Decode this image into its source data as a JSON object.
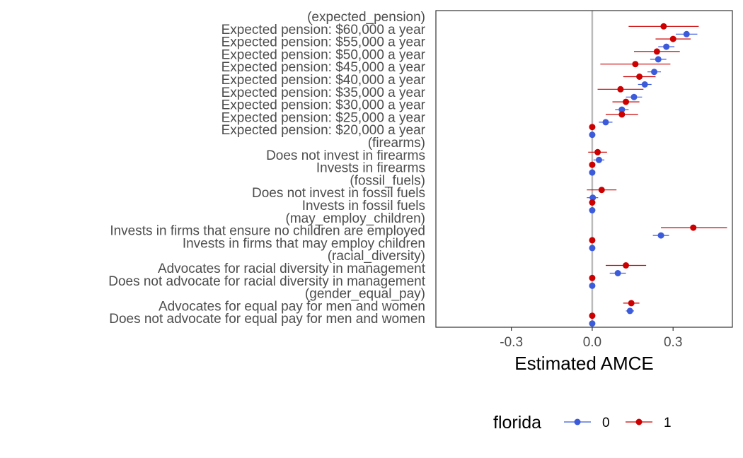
{
  "chart_data": {
    "type": "scatter",
    "subtype": "coefficient-plot-with-horizontal-error-bars",
    "title": "",
    "xlabel": "Estimated AMCE",
    "ylabel": "",
    "xlim": [
      -0.58,
      0.52
    ],
    "x_ticks": [
      -0.3,
      0.0,
      0.3
    ],
    "x_tick_labels": [
      "-0.3",
      "0.0",
      "0.3"
    ],
    "reference_line_x": 0,
    "grid": false,
    "legend": {
      "title": "florida",
      "position": "bottom",
      "labels": [
        "0",
        "1"
      ]
    },
    "colors": {
      "0": "#3B5BDB",
      "1": "#CC0000",
      "reference_line": "#BBBBBB",
      "panel_border": "#333333"
    },
    "categories": [
      "(expected_pension)",
      "Expected pension: $60,000 a year",
      "Expected pension: $55,000 a year",
      "Expected pension: $50,000 a year",
      "Expected pension: $45,000 a year",
      "Expected pension: $40,000 a year",
      "Expected pension: $35,000 a year",
      "Expected pension: $30,000 a year",
      "Expected pension: $25,000 a year",
      "Expected pension: $20,000 a year",
      "(firearms)",
      "Does not invest in firearms",
      "Invests in firearms",
      "(fossil_fuels)",
      "Does not invest in fossil fuels",
      "Invests in fossil fuels",
      "(may_employ_children)",
      "Invests in firms that ensure no children are employed",
      "Invests in firms that may employ children",
      "(racial_diversity)",
      "Advocates for racial diversity in management",
      "Does not advocate for racial diversity in management",
      "(gender_equal_pay)",
      "Advocates for equal pay for men and women",
      "Does not advocate for equal pay for men and women"
    ],
    "series": [
      {
        "name": "0",
        "estimates": [
          null,
          0.35,
          0.275,
          0.245,
          0.23,
          0.195,
          0.155,
          0.11,
          0.05,
          0.0,
          null,
          0.025,
          0.0,
          null,
          0.002,
          0.0,
          null,
          0.255,
          0.0,
          null,
          0.095,
          0.0,
          null,
          0.14,
          0.0
        ],
        "lower": [
          null,
          0.31,
          0.245,
          0.215,
          0.205,
          0.17,
          0.125,
          0.085,
          0.025,
          0.0,
          null,
          0.005,
          0.0,
          null,
          -0.02,
          0.0,
          null,
          0.225,
          0.0,
          null,
          0.065,
          0.0,
          null,
          0.125,
          0.0
        ],
        "upper": [
          null,
          0.39,
          0.305,
          0.275,
          0.255,
          0.22,
          0.185,
          0.135,
          0.075,
          0.0,
          null,
          0.045,
          0.0,
          null,
          0.022,
          0.0,
          null,
          0.285,
          0.0,
          null,
          0.125,
          0.0,
          null,
          0.155,
          0.0
        ]
      },
      {
        "name": "1",
        "estimates": [
          null,
          0.265,
          0.3,
          0.24,
          0.16,
          0.175,
          0.105,
          0.125,
          0.11,
          0.0,
          null,
          0.02,
          0.0,
          null,
          0.035,
          0.0,
          null,
          0.375,
          0.0,
          null,
          0.125,
          0.0,
          null,
          0.145,
          0.0
        ],
        "lower": [
          null,
          0.135,
          0.235,
          0.155,
          0.03,
          0.115,
          0.02,
          0.075,
          0.05,
          0.0,
          null,
          -0.015,
          0.0,
          null,
          -0.02,
          0.0,
          null,
          0.255,
          0.0,
          null,
          0.05,
          0.0,
          null,
          0.115,
          0.0
        ],
        "upper": [
          null,
          0.395,
          0.365,
          0.325,
          0.29,
          0.235,
          0.19,
          0.175,
          0.17,
          0.0,
          null,
          0.055,
          0.0,
          null,
          0.09,
          0.0,
          null,
          0.5,
          0.0,
          null,
          0.2,
          0.0,
          null,
          0.175,
          0.0
        ]
      }
    ]
  }
}
